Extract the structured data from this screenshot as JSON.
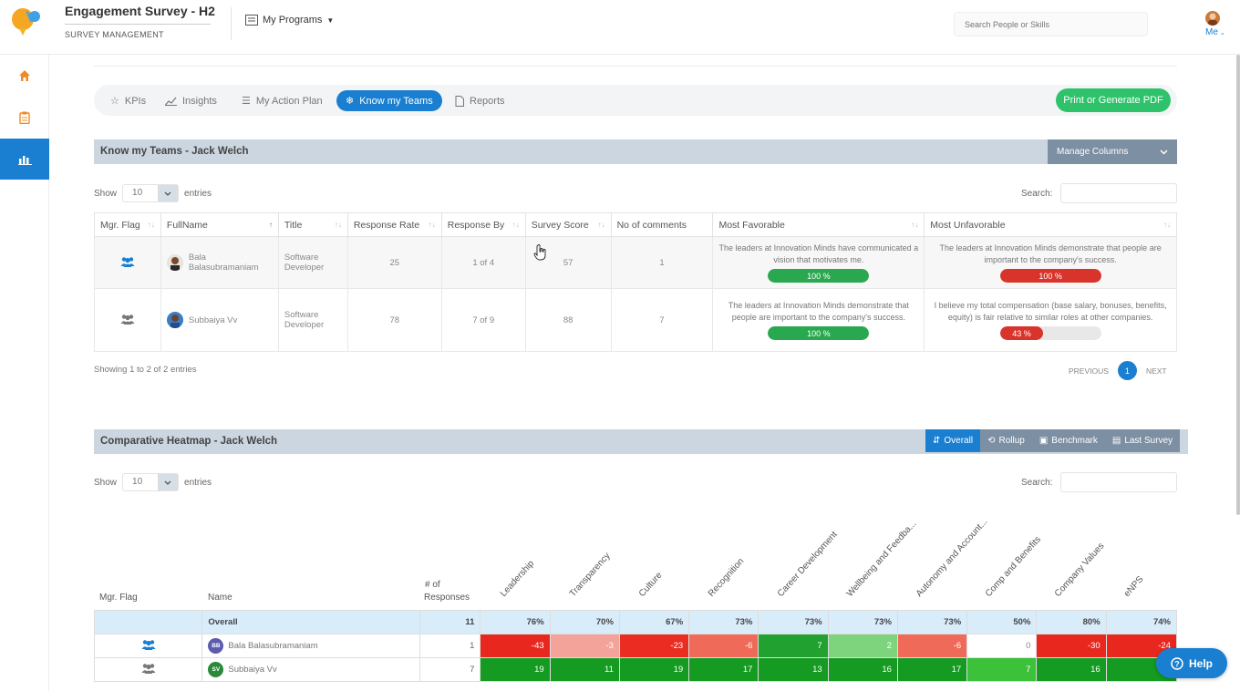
{
  "header": {
    "title": "Engagement Survey - H2",
    "subtitle": "SURVEY MANAGEMENT",
    "programs_label": "My Programs",
    "search_placeholder": "Search People or Skills",
    "user_label": "Me"
  },
  "sidebar": {
    "items": [
      {
        "icon": "home-icon"
      },
      {
        "icon": "clipboard-icon"
      },
      {
        "icon": "bar-chart-icon",
        "active": true
      }
    ]
  },
  "tabs": [
    {
      "label": "KPIs",
      "icon": "star-icon"
    },
    {
      "label": "Insights",
      "icon": "line-chart-icon"
    },
    {
      "label": "My Action Plan",
      "icon": "list-icon"
    },
    {
      "label": "Know my Teams",
      "icon": "snowflake-icon",
      "active": true
    },
    {
      "label": "Reports",
      "icon": "document-icon"
    }
  ],
  "pdf_button": "Print or Generate PDF",
  "teams": {
    "title": "Know my Teams - Jack Welch",
    "manage_columns": "Manage Columns",
    "show_label": "Show",
    "entries_value": "10",
    "entries_label": "entries",
    "search_label": "Search:",
    "columns": [
      "Mgr. Flag",
      "FullName",
      "Title",
      "Response Rate",
      "Response By",
      "Survey Score",
      "No of comments",
      "Most Favorable",
      "Most Unfavorable"
    ],
    "rows": [
      {
        "name": "Bala Balasubramaniam",
        "title": "Software Developer",
        "response_rate": "25",
        "response_by": "1 of 4",
        "survey_score": "57",
        "comments": "1",
        "favorable_text": "The leaders at Innovation Minds have communicated a vision that motivates me.",
        "favorable_pct": 100,
        "favorable_label": "100 %",
        "unfavorable_text": "The leaders at Innovation Minds demonstrate that people are important to the company's success.",
        "unfavorable_pct": 100,
        "unfavorable_label": "100 %"
      },
      {
        "name": "Subbaiya Vv",
        "title": "Software Developer",
        "response_rate": "78",
        "response_by": "7 of 9",
        "survey_score": "88",
        "comments": "7",
        "favorable_text": "The leaders at Innovation Minds demonstrate that people are important to the company's success.",
        "favorable_pct": 100,
        "favorable_label": "100 %",
        "unfavorable_text": "I believe my total compensation (base salary, bonuses, benefits, equity) is fair relative to similar roles at other companies.",
        "unfavorable_pct": 43,
        "unfavorable_label": "43 %"
      }
    ],
    "showing": "Showing 1 to 2 of 2 entries",
    "previous": "PREVIOUS",
    "page": "1",
    "next": "NEXT"
  },
  "heatmap": {
    "title": "Comparative Heatmap - Jack Welch",
    "buttons": [
      {
        "label": "Overall",
        "icon": "overall-icon",
        "active": true
      },
      {
        "label": "Rollup",
        "icon": "rollup-icon"
      },
      {
        "label": "Benchmark",
        "icon": "benchmark-icon"
      },
      {
        "label": "Last Survey",
        "icon": "last-survey-icon"
      }
    ],
    "show_label": "Show",
    "entries_value": "10",
    "entries_label": "entries",
    "search_label": "Search:",
    "col_flag": "Mgr. Flag",
    "col_name": "Name",
    "col_responses_1": "# of",
    "col_responses_2": "Responses",
    "categories": [
      "Leadership",
      "Transparency",
      "Culture",
      "Recognition",
      "Career Development",
      "Wellbeing and Feedba...",
      "Autonomy and Account...",
      "Comp and Benefits",
      "Company Values",
      "eNPS"
    ],
    "overall": {
      "name": "Overall",
      "responses": "11",
      "values": [
        "76%",
        "70%",
        "67%",
        "73%",
        "73%",
        "73%",
        "73%",
        "50%",
        "80%",
        "74%"
      ]
    },
    "rows": [
      {
        "name": "Bala Balasubramaniam",
        "initials": "BB",
        "avatar_color": "#5b5bb0",
        "responses": "1",
        "values": [
          "-43",
          "-3",
          "-23",
          "-6",
          "7",
          "2",
          "-6",
          "0",
          "-30",
          "-24"
        ],
        "colors": [
          "#e8281f",
          "#f3a39a",
          "#ea2c22",
          "#ef6a58",
          "#21a12f",
          "#7ed47d",
          "#ef6a58",
          "#ffffff",
          "#e8281f",
          "#e8281f"
        ]
      },
      {
        "name": "Subbaiya Vv",
        "initials": "SV",
        "avatar_color": "#2a8a3a",
        "responses": "7",
        "values": [
          "19",
          "11",
          "19",
          "17",
          "13",
          "16",
          "17",
          "7",
          "16",
          ""
        ],
        "colors": [
          "#159a22",
          "#159a22",
          "#159a22",
          "#159a22",
          "#159a22",
          "#159a22",
          "#159a22",
          "#3cc13a",
          "#159a22",
          "#159a22"
        ]
      }
    ]
  },
  "help_label": "Help"
}
